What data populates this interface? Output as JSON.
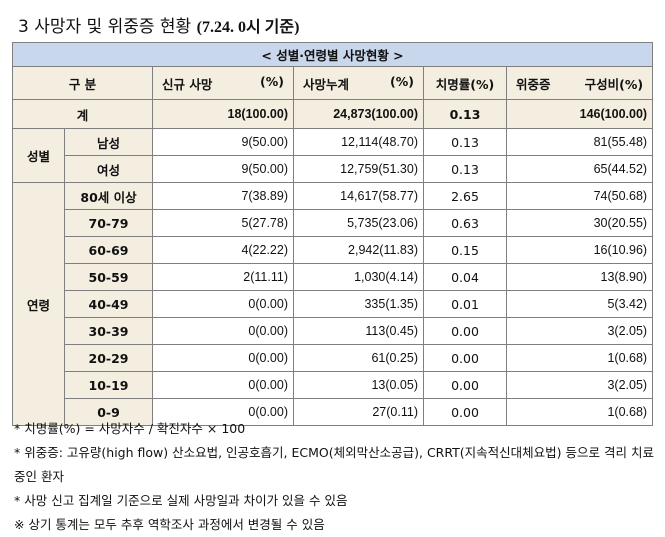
{
  "title": {
    "main": "3  사망자 및 위중증 현황",
    "sub": "(7.24. 0시 기준)"
  },
  "table": {
    "caption": "< 성별·연령별 사망현황 >",
    "headers": {
      "group": "구 분",
      "new": "신규 사망",
      "new_pct": "(%)",
      "cum": "사망누계",
      "cum_pct": "(%)",
      "fatality": "치명률(%)",
      "severe": "위중증",
      "severe_ratio": "구성비(%)"
    },
    "total": {
      "label": "계",
      "new": "18(100.00)",
      "cum": "24,873(100.00)",
      "fatality": "0.13",
      "severe": "146(100.00)"
    },
    "sex_label": "성별",
    "sex_rows": [
      {
        "label": "남성",
        "new": "9(50.00)",
        "cum": "12,114(48.70)",
        "fatality": "0.13",
        "severe": "81(55.48)"
      },
      {
        "label": "여성",
        "new": "9(50.00)",
        "cum": "12,759(51.30)",
        "fatality": "0.13",
        "severe": "65(44.52)"
      }
    ],
    "age_label": "연령",
    "age_rows": [
      {
        "label": "80세 이상",
        "new": "7(38.89)",
        "cum": "14,617(58.77)",
        "fatality": "2.65",
        "severe": "74(50.68)"
      },
      {
        "label": "70-79",
        "new": "5(27.78)",
        "cum": "5,735(23.06)",
        "fatality": "0.63",
        "severe": "30(20.55)"
      },
      {
        "label": "60-69",
        "new": "4(22.22)",
        "cum": "2,942(11.83)",
        "fatality": "0.15",
        "severe": "16(10.96)"
      },
      {
        "label": "50-59",
        "new": "2(11.11)",
        "cum": "1,030(4.14)",
        "fatality": "0.04",
        "severe": "13(8.90)"
      },
      {
        "label": "40-49",
        "new": "0(0.00)",
        "cum": "335(1.35)",
        "fatality": "0.01",
        "severe": "5(3.42)"
      },
      {
        "label": "30-39",
        "new": "0(0.00)",
        "cum": "113(0.45)",
        "fatality": "0.00",
        "severe": "3(2.05)"
      },
      {
        "label": "20-29",
        "new": "0(0.00)",
        "cum": "61(0.25)",
        "fatality": "0.00",
        "severe": "1(0.68)"
      },
      {
        "label": "10-19",
        "new": "0(0.00)",
        "cum": "13(0.05)",
        "fatality": "0.00",
        "severe": "3(2.05)"
      },
      {
        "label": "0-9",
        "new": "0(0.00)",
        "cum": "27(0.11)",
        "fatality": "0.00",
        "severe": "1(0.68)"
      }
    ]
  },
  "notes": [
    "* 치명률(%) = 사망자수 / 확진자수 × 100",
    "* 위중증: 고유량(high flow) 산소요법, 인공호흡기, ECMO(체외막산소공급), CRRT(지속적신대체요법) 등으로 격리 치료 중인 환자",
    "* 사망 신고 집계일 기준으로 실제 사망일과 차이가 있을 수 있음",
    "※ 상기 통계는 모두 추후 역학조사 과정에서 변경될 수 있음"
  ]
}
